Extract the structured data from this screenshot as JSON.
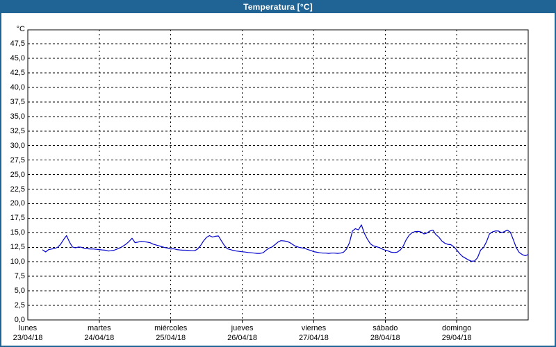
{
  "window": {
    "title": "Temperatura [°C]"
  },
  "chart_data": {
    "type": "line",
    "title": "Temperatura [°C]",
    "grid": "dashed-black",
    "legend": "none",
    "y_axis": {
      "unit_label": "°C",
      "min": 0,
      "max": 49.9,
      "tick_step": 2.5,
      "tick_labels": [
        "47,5",
        "45,0",
        "42,5",
        "40,0",
        "37,5",
        "35,0",
        "32,5",
        "30,0",
        "27,5",
        "25,0",
        "22,5",
        "20,0",
        "17,5",
        "15,0",
        "12,5",
        "10,0",
        "7,5",
        "5,0",
        "2,5",
        "0,0"
      ]
    },
    "x_axis": {
      "days": [
        {
          "name": "lunes",
          "date": "23/04/18"
        },
        {
          "name": "martes",
          "date": "24/04/18"
        },
        {
          "name": "miércoles",
          "date": "25/04/18"
        },
        {
          "name": "jueves",
          "date": "26/04/18"
        },
        {
          "name": "viernes",
          "date": "27/04/18"
        },
        {
          "name": "sábado",
          "date": "28/04/18"
        },
        {
          "name": "domingo",
          "date": "29/04/18"
        }
      ]
    },
    "series": [
      {
        "name": "Temperatura",
        "color": "#0000cc",
        "start_day": "lunes 23/04/18",
        "start_hour_offset": 5,
        "interval_hours": 1,
        "values": [
          12.05,
          11.7,
          12.1,
          12.2,
          12.3,
          12.5,
          13.0,
          13.8,
          14.5,
          13.4,
          12.55,
          12.4,
          12.55,
          12.5,
          12.3,
          12.25,
          12.2,
          12.2,
          12.15,
          12.1,
          12.05,
          12.0,
          11.85,
          11.9,
          12.0,
          12.2,
          12.4,
          12.7,
          13.05,
          13.5,
          14.05,
          13.3,
          13.4,
          13.5,
          13.45,
          13.4,
          13.3,
          13.05,
          12.9,
          12.75,
          12.6,
          12.45,
          12.35,
          12.2,
          12.25,
          12.1,
          12.05,
          12.0,
          12.0,
          11.95,
          11.9,
          11.9,
          12.2,
          12.8,
          13.6,
          14.2,
          14.5,
          14.25,
          14.4,
          14.45,
          13.6,
          12.8,
          12.25,
          12.1,
          11.95,
          11.85,
          11.8,
          11.72,
          11.68,
          11.6,
          11.55,
          11.5,
          11.45,
          11.45,
          11.55,
          12.0,
          12.35,
          12.55,
          12.95,
          13.4,
          13.65,
          13.6,
          13.5,
          13.3,
          12.95,
          12.65,
          12.5,
          12.4,
          12.3,
          12.1,
          11.95,
          11.75,
          11.65,
          11.55,
          11.5,
          11.5,
          11.45,
          11.5,
          11.5,
          11.45,
          11.5,
          11.65,
          12.2,
          13.3,
          15.3,
          15.7,
          15.5,
          16.35,
          14.9,
          13.9,
          13.1,
          12.75,
          12.6,
          12.45,
          12.2,
          12.0,
          11.85,
          11.65,
          11.6,
          11.65,
          12.0,
          12.65,
          13.75,
          14.55,
          15.0,
          15.2,
          15.25,
          15.15,
          14.8,
          14.95,
          15.3,
          15.45,
          14.7,
          14.25,
          13.6,
          13.2,
          13.0,
          12.95,
          12.6,
          12.05,
          11.4,
          10.9,
          10.6,
          10.3,
          10.1,
          10.15,
          10.7,
          12.0,
          12.45,
          13.45,
          14.8,
          15.15,
          15.3,
          15.3,
          15.0,
          15.2,
          15.45,
          15.1,
          13.8,
          12.4,
          11.6,
          11.25,
          11.05,
          11.25
        ]
      }
    ]
  }
}
